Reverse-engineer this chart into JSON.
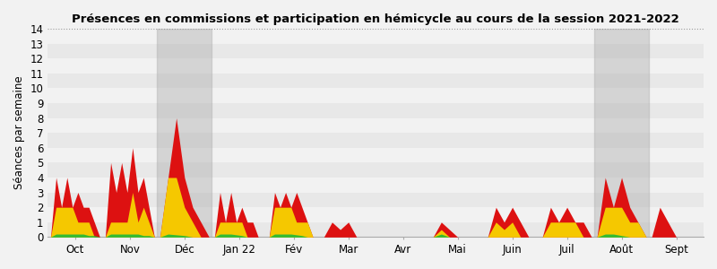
{
  "title": "Présences en commissions et participation en hémicycle au cours de la session 2021-2022",
  "ylabel": "Séances par semaine",
  "ylim": [
    0,
    14
  ],
  "yticks": [
    0,
    1,
    2,
    3,
    4,
    5,
    6,
    7,
    8,
    9,
    10,
    11,
    12,
    13,
    14
  ],
  "bg_light": "#ececec",
  "bg_dark": "#e0e0e0",
  "gray_shade_color": "#b0b0b0",
  "gray_shade_alpha": 0.45,
  "color_green": "#33bb33",
  "color_yellow": "#f5c800",
  "color_red": "#dd1111",
  "months": [
    "Oct",
    "Nov",
    "Déc",
    "Jan 22",
    "Fév",
    "Mar",
    "Avr",
    "Mai",
    "Juin",
    "Juil",
    "Août",
    "Sept"
  ],
  "month_centers": [
    0.5,
    1.5,
    2.5,
    3.5,
    4.5,
    5.5,
    6.5,
    7.5,
    8.5,
    9.5,
    10.5,
    11.5
  ],
  "gray_shading": [
    {
      "start": 2.0,
      "end": 3.0
    },
    {
      "start": 10.0,
      "end": 11.0
    }
  ],
  "segments": [
    {
      "x": [
        0.05,
        0.15,
        0.25,
        0.35,
        0.45,
        0.55,
        0.65,
        0.75,
        0.85,
        0.95
      ],
      "red": [
        0,
        4,
        2,
        4,
        2,
        3,
        2,
        2,
        1,
        0
      ],
      "yel": [
        0,
        2,
        2,
        2,
        2,
        1,
        1,
        1,
        0,
        0
      ],
      "grn": [
        0,
        0.2,
        0.2,
        0.2,
        0.2,
        0.2,
        0.2,
        0.1,
        0.1,
        0
      ]
    },
    {
      "x": [
        1.05,
        1.15,
        1.25,
        1.35,
        1.45,
        1.55,
        1.65,
        1.75,
        1.85,
        1.95
      ],
      "red": [
        0,
        5,
        3,
        5,
        3,
        6,
        3,
        4,
        2,
        0
      ],
      "yel": [
        0,
        1,
        1,
        1,
        1,
        3,
        1,
        2,
        1,
        0
      ],
      "grn": [
        0,
        0.2,
        0.2,
        0.2,
        0.2,
        0.2,
        0.2,
        0.1,
        0.1,
        0
      ]
    },
    {
      "x": [
        2.05,
        2.2,
        2.35,
        2.5,
        2.65,
        2.8,
        2.95
      ],
      "red": [
        0,
        4,
        8,
        4,
        2,
        1,
        0
      ],
      "yel": [
        0,
        4,
        4,
        2,
        1,
        0,
        0
      ],
      "grn": [
        0,
        0.2,
        0.15,
        0.1,
        0,
        0,
        0
      ]
    },
    {
      "x": [
        3.05,
        3.15,
        3.25,
        3.35,
        3.45,
        3.55,
        3.65,
        3.75,
        3.85,
        3.95
      ],
      "red": [
        0,
        3,
        1,
        3,
        1,
        2,
        1,
        1,
        0,
        0
      ],
      "yel": [
        0,
        1,
        1,
        1,
        1,
        1,
        0,
        0,
        0,
        0
      ],
      "grn": [
        0,
        0.2,
        0.2,
        0.2,
        0.15,
        0.1,
        0,
        0,
        0,
        0
      ]
    },
    {
      "x": [
        4.05,
        4.15,
        4.25,
        4.35,
        4.45,
        4.55,
        4.65,
        4.75,
        4.85,
        4.95
      ],
      "red": [
        0,
        3,
        2,
        3,
        2,
        3,
        2,
        1,
        0,
        0
      ],
      "yel": [
        0,
        2,
        2,
        2,
        2,
        1,
        1,
        1,
        0,
        0
      ],
      "grn": [
        0,
        0.2,
        0.2,
        0.2,
        0.2,
        0.15,
        0.1,
        0,
        0,
        0
      ]
    },
    {
      "x": [
        5.05,
        5.2,
        5.35,
        5.5,
        5.65,
        5.8,
        5.95
      ],
      "red": [
        0,
        1,
        0.5,
        1,
        0,
        0,
        0
      ],
      "yel": [
        0,
        0,
        0,
        0,
        0,
        0,
        0
      ],
      "grn": [
        0,
        0,
        0,
        0,
        0,
        0,
        0
      ]
    },
    {
      "x": [
        6.05,
        6.5,
        6.95
      ],
      "red": [
        0,
        0,
        0
      ],
      "yel": [
        0,
        0,
        0
      ],
      "grn": [
        0,
        0,
        0
      ]
    },
    {
      "x": [
        7.05,
        7.2,
        7.35,
        7.5,
        7.65,
        7.8,
        7.95
      ],
      "red": [
        0,
        1,
        0.5,
        0,
        0,
        0,
        0
      ],
      "yel": [
        0,
        0.5,
        0,
        0,
        0,
        0,
        0
      ],
      "grn": [
        0,
        0.2,
        0,
        0,
        0,
        0,
        0
      ]
    },
    {
      "x": [
        8.05,
        8.2,
        8.35,
        8.5,
        8.65,
        8.8,
        8.95
      ],
      "red": [
        0,
        2,
        1,
        2,
        1,
        0,
        0
      ],
      "yel": [
        0,
        1,
        0.5,
        1,
        0,
        0,
        0
      ],
      "grn": [
        0,
        0,
        0,
        0,
        0,
        0,
        0
      ]
    },
    {
      "x": [
        9.05,
        9.2,
        9.35,
        9.5,
        9.65,
        9.8,
        9.95
      ],
      "red": [
        0,
        2,
        1,
        2,
        1,
        1,
        0
      ],
      "yel": [
        0,
        1,
        1,
        1,
        1,
        0,
        0
      ],
      "grn": [
        0,
        0,
        0,
        0,
        0,
        0,
        0
      ]
    },
    {
      "x": [
        10.05,
        10.2,
        10.35,
        10.5,
        10.65,
        10.8,
        10.95
      ],
      "red": [
        0,
        4,
        2,
        4,
        2,
        1,
        0
      ],
      "yel": [
        0,
        2,
        2,
        2,
        1,
        1,
        0
      ],
      "grn": [
        0,
        0.2,
        0.2,
        0.1,
        0,
        0,
        0
      ]
    },
    {
      "x": [
        11.05,
        11.2,
        11.35,
        11.5,
        11.65,
        11.8,
        11.95
      ],
      "red": [
        0,
        2,
        1,
        0,
        0,
        0,
        0
      ],
      "yel": [
        0,
        0,
        0,
        0,
        0,
        0,
        0
      ],
      "grn": [
        0,
        0,
        0,
        0,
        0,
        0,
        0
      ]
    }
  ]
}
